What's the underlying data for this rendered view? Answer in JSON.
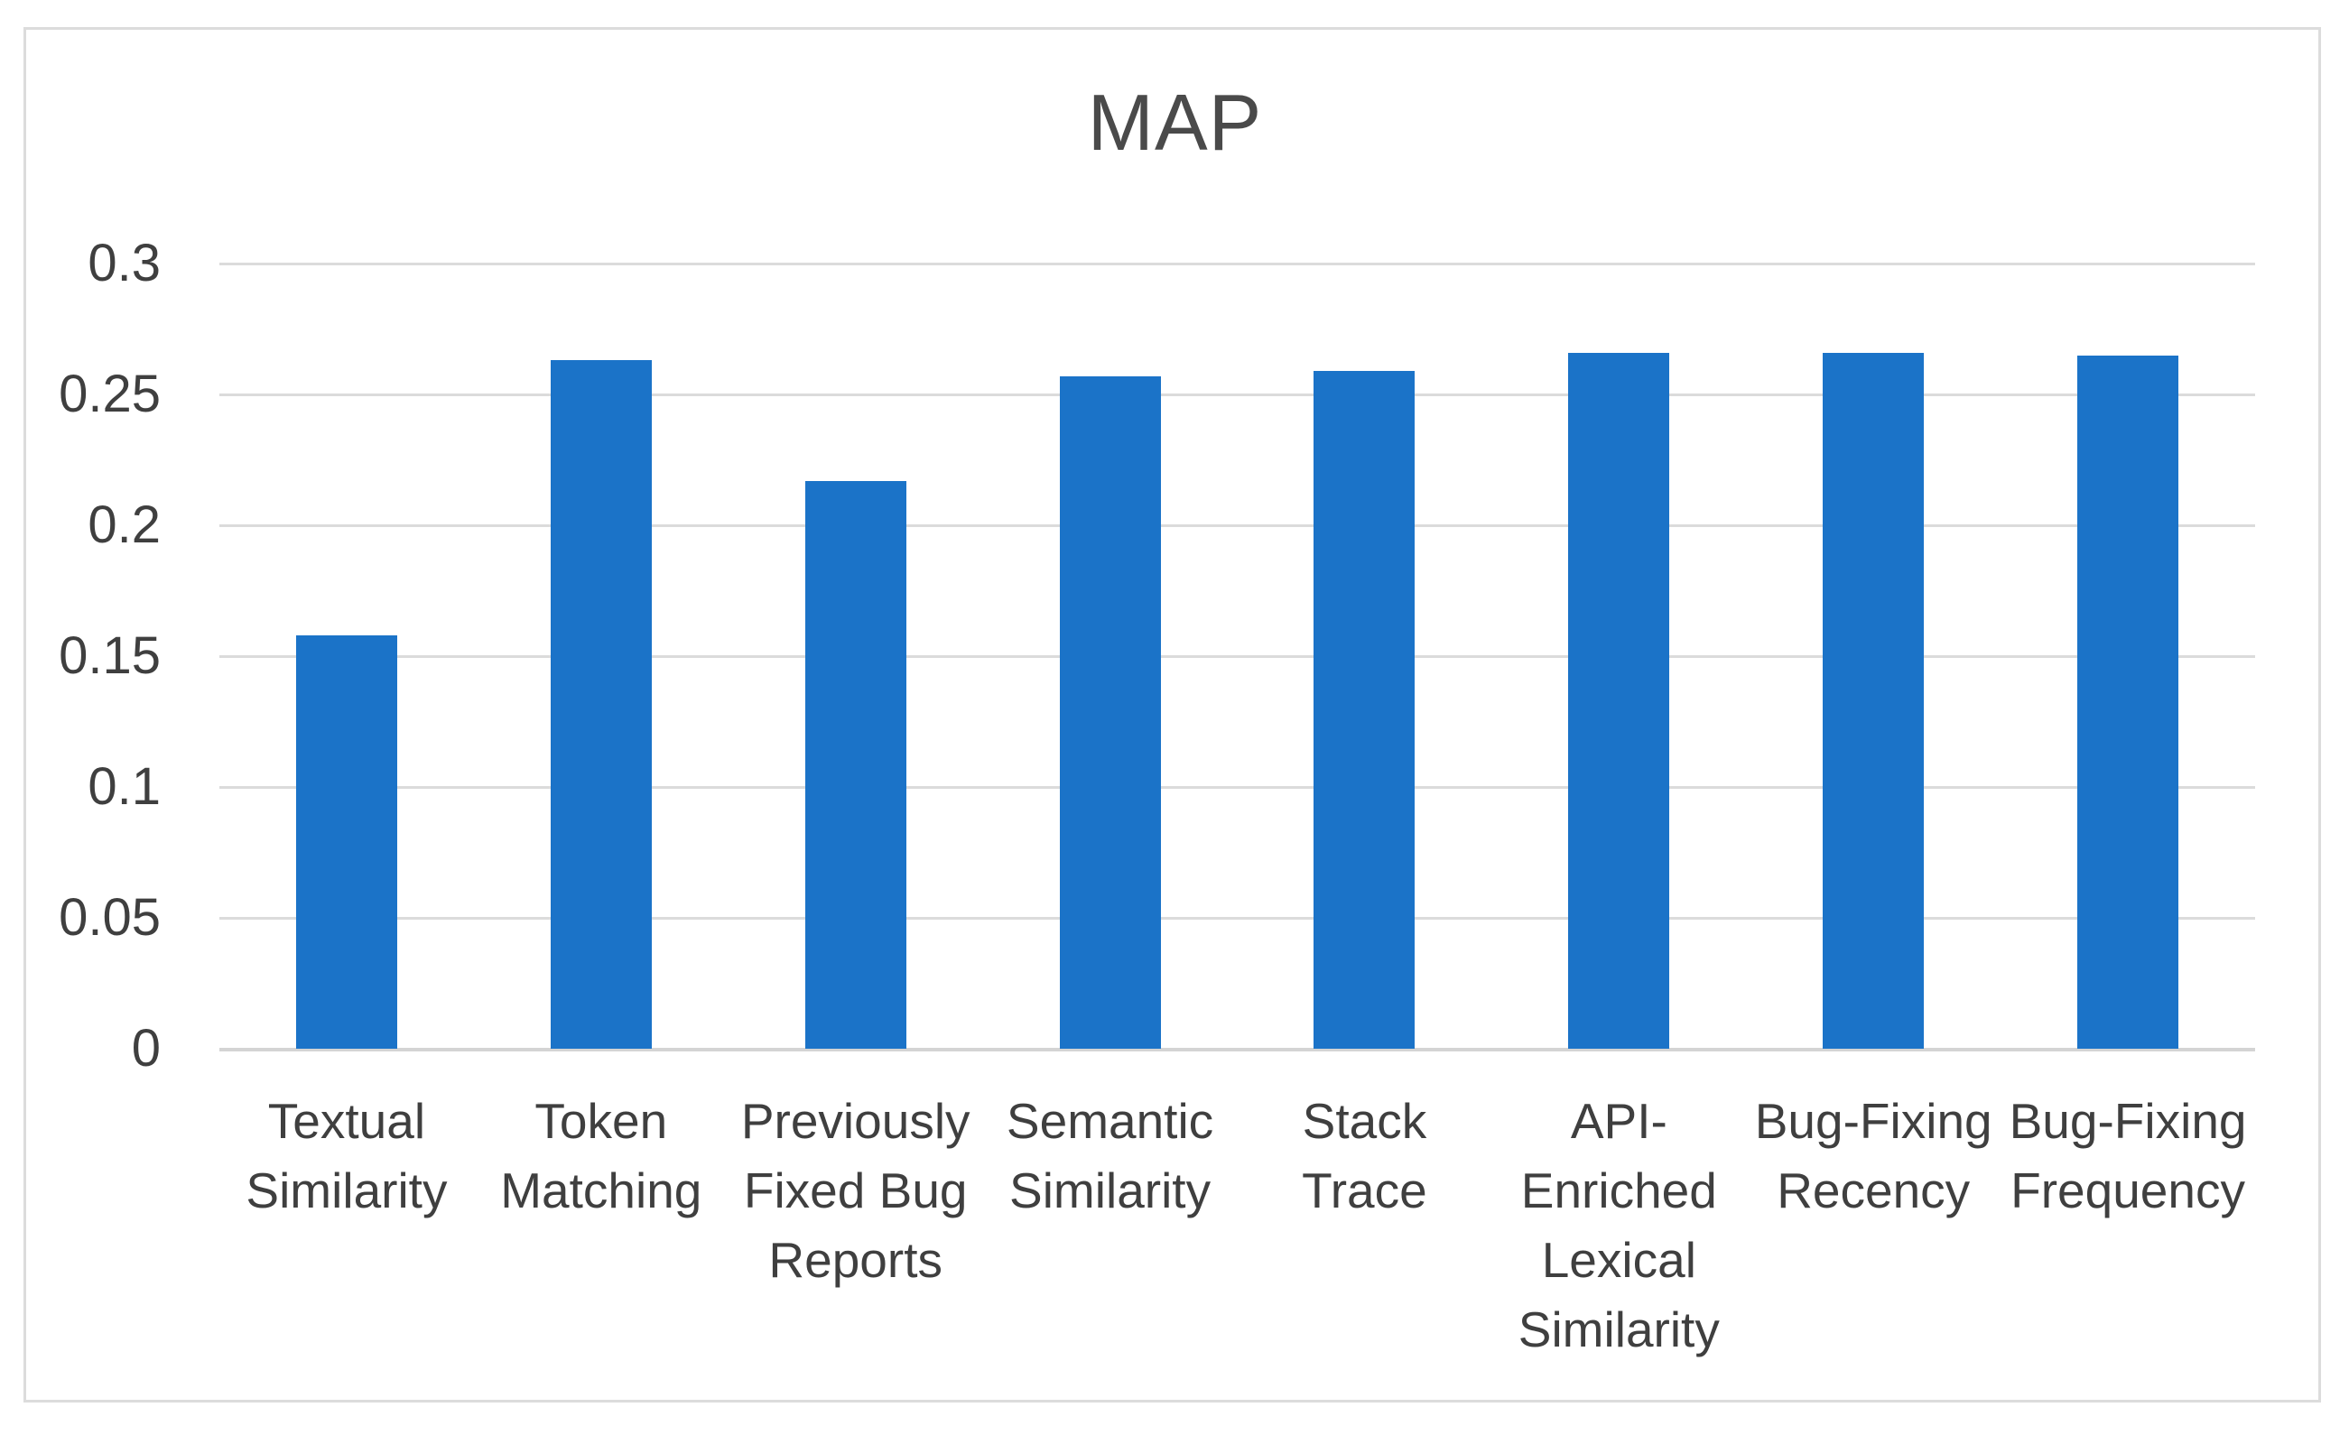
{
  "chart_data": {
    "type": "bar",
    "title": "MAP",
    "categories": [
      "Textual Similarity",
      "Token Matching",
      "Previously Fixed Bug Reports",
      "Semantic Similarity",
      "Stack Trace",
      "API-Enriched Lexical Similarity",
      "Bug-Fixing Recency",
      "Bug-Fixing Frequency"
    ],
    "category_lines": [
      [
        "Textual",
        "Similarity"
      ],
      [
        "Token",
        "Matching"
      ],
      [
        "Previously",
        "Fixed Bug",
        "Reports"
      ],
      [
        "Semantic",
        "Similarity"
      ],
      [
        "Stack",
        "Trace"
      ],
      [
        "API-",
        "Enriched",
        "Lexical",
        "Similarity"
      ],
      [
        "Bug-Fixing",
        "Recency"
      ],
      [
        "Bug-Fixing",
        "Frequency"
      ]
    ],
    "values": [
      0.158,
      0.263,
      0.217,
      0.257,
      0.259,
      0.266,
      0.266,
      0.265
    ],
    "xlabel": "",
    "ylabel": "",
    "ylim": [
      0,
      0.3
    ],
    "ytick_step": 0.05,
    "yticks": [
      "0.3",
      "0.25",
      "0.2",
      "0.15",
      "0.1",
      "0.05",
      "0"
    ],
    "grid": true,
    "legend": false,
    "bar_color": "#1B73C8",
    "gridline_color": "#DBDBDB",
    "axis_line_color": "#D4D4D4",
    "frame_border_color": "#DCDCDC",
    "title_color": "#4A4A4A",
    "label_color": "#3F3F3F"
  }
}
